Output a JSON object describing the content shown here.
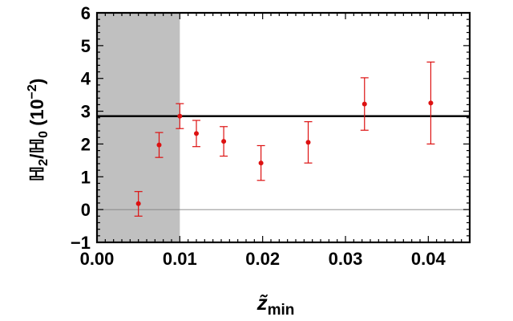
{
  "chart_data": {
    "type": "scatter",
    "title": "",
    "xlabel": "z̃",
    "xlabel_subscript": "min",
    "ylabel": "ℍ",
    "ylabel_sub1": "2",
    "ylabel_mid": "/ℍ",
    "ylabel_sub2": "0",
    "ylabel_unit_open": " (10",
    "ylabel_unit_exp": "−2",
    "ylabel_unit_close": ")",
    "xlim": [
      0,
      0.045
    ],
    "ylim": [
      -1,
      6
    ],
    "x_ticks": [
      0,
      0.01,
      0.02,
      0.03,
      0.04
    ],
    "x_tick_labels": [
      "0.00",
      "0.01",
      "0.02",
      "0.03",
      "0.04"
    ],
    "y_ticks": [
      -1,
      0,
      1,
      2,
      3,
      4,
      5,
      6
    ],
    "y_tick_labels": [
      "−1",
      "0",
      "1",
      "2",
      "3",
      "4",
      "5",
      "6"
    ],
    "grid": false,
    "shaded_region": {
      "x_start": 0,
      "x_end": 0.01,
      "color": "#c0c0c0"
    },
    "reference_lines": [
      {
        "y": 2.85,
        "color": "#000000",
        "style": "thick"
      },
      {
        "y": 0,
        "color": "#808080",
        "style": "thin"
      }
    ],
    "series": [
      {
        "color": "#dd1111",
        "points": [
          {
            "x": 0.005,
            "y": 0.18,
            "err_low": 0.38,
            "err_high": 0.37
          },
          {
            "x": 0.0075,
            "y": 1.97,
            "err_low": 0.38,
            "err_high": 0.38
          },
          {
            "x": 0.01,
            "y": 2.85,
            "err_low": 0.38,
            "err_high": 0.38
          },
          {
            "x": 0.012,
            "y": 2.32,
            "err_low": 0.4,
            "err_high": 0.4
          },
          {
            "x": 0.0153,
            "y": 2.08,
            "err_low": 0.45,
            "err_high": 0.45
          },
          {
            "x": 0.0198,
            "y": 1.42,
            "err_low": 0.53,
            "err_high": 0.53
          },
          {
            "x": 0.0255,
            "y": 2.05,
            "err_low": 0.63,
            "err_high": 0.63
          },
          {
            "x": 0.0323,
            "y": 3.22,
            "err_low": 0.8,
            "err_high": 0.8
          },
          {
            "x": 0.0403,
            "y": 3.25,
            "err_low": 1.25,
            "err_high": 1.25
          }
        ]
      }
    ]
  }
}
